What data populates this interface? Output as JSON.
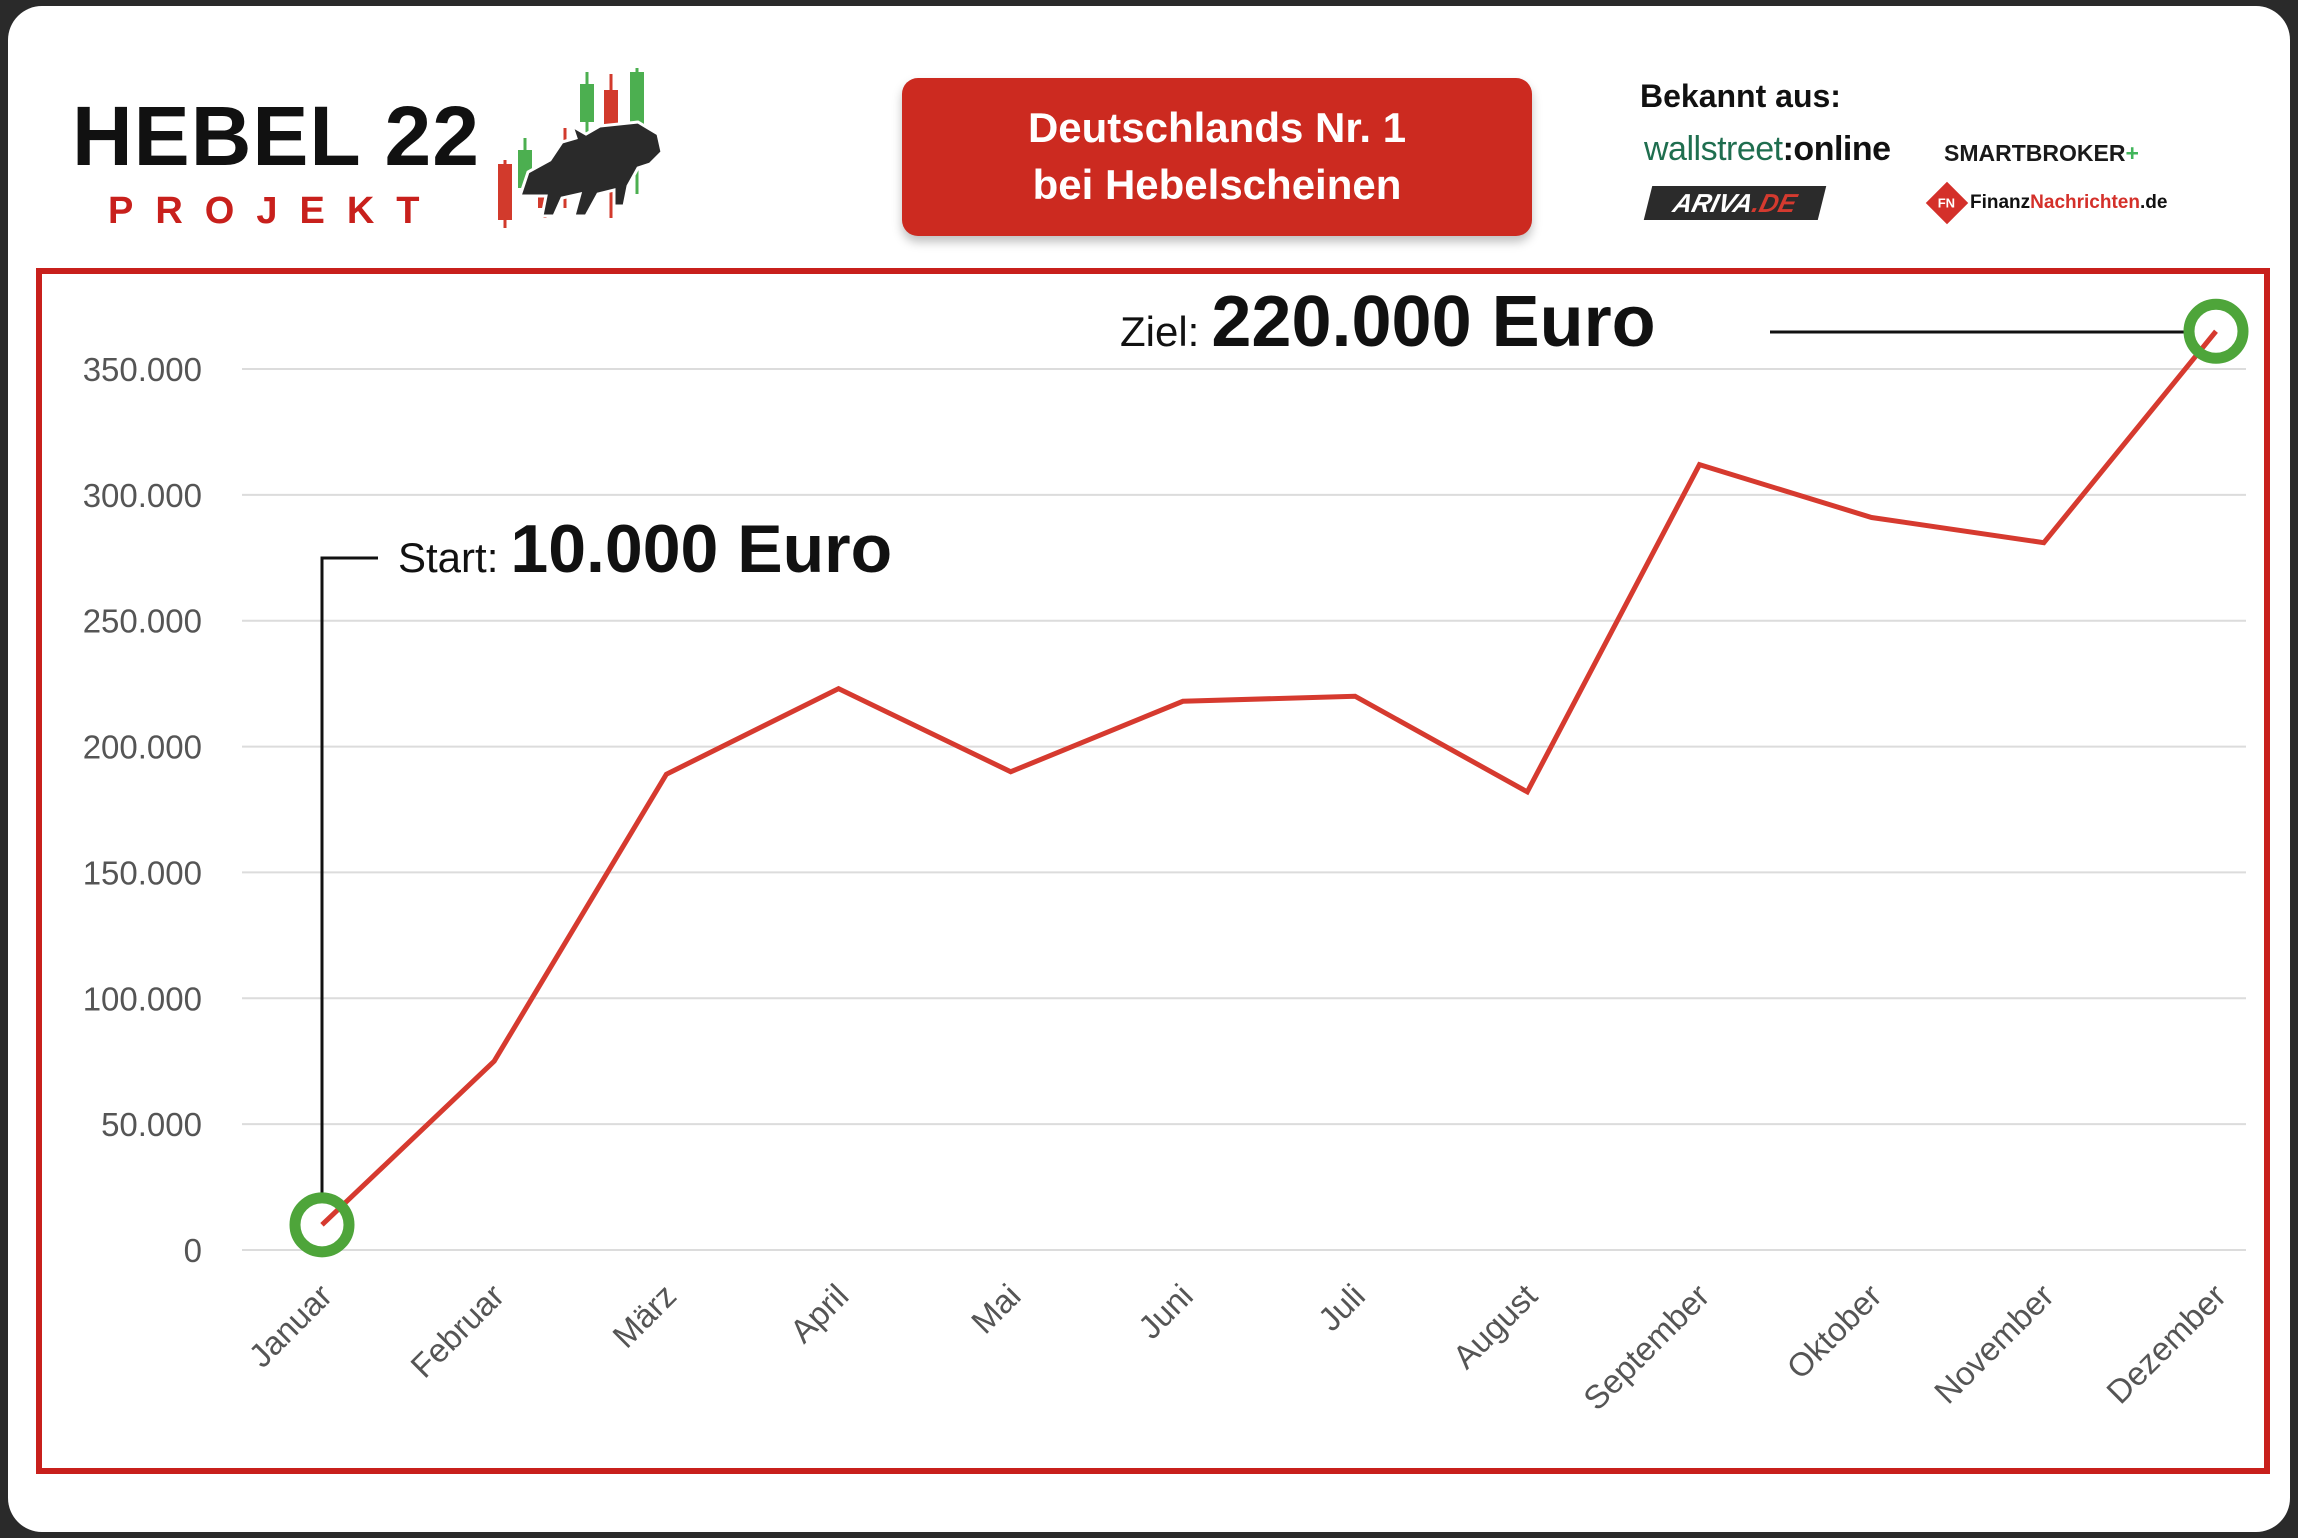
{
  "header": {
    "brand_title": "HEBEL 22",
    "brand_sub": "PROJEKT",
    "banner_line1": "Deutschlands Nr. 1",
    "banner_line2": "bei Hebelscheinen",
    "known_from": "Bekannt aus:",
    "press": {
      "wallstreet_a": "wallstreet",
      "wallstreet_b": ":online",
      "smartbroker": "SMARTBROKER",
      "smartbroker_plus": "+",
      "ariva_a": "ARIVA",
      "ariva_b": ".DE",
      "finanz_icon": "FN",
      "finanz_a": "Finanz",
      "finanz_b": "Nachrichten",
      "finanz_c": ".de"
    }
  },
  "colors": {
    "line": "#d63a2f",
    "marker": "#4ea53a",
    "brand_red": "#c8201c",
    "candle_green": "#4caf50",
    "candle_red": "#d23a2c"
  },
  "annotations": {
    "start_label": "Start:",
    "start_value": "10.000 Euro",
    "goal_label": "Ziel:",
    "goal_value": "220.000 Euro"
  },
  "chart_data": {
    "type": "line",
    "categories": [
      "Januar",
      "Februar",
      "März",
      "April",
      "Mai",
      "Juni",
      "Juli",
      "August",
      "September",
      "Oktober",
      "November",
      "Dezember"
    ],
    "series": [
      {
        "values": [
          10000,
          75000,
          189000,
          223000,
          190000,
          218000,
          220000,
          182000,
          312000,
          291000,
          281000,
          365000
        ]
      }
    ],
    "yticks": [
      "0",
      "50.000",
      "100.000",
      "150.000",
      "200.000",
      "250.000",
      "300.000",
      "350.000"
    ],
    "ylim": [
      0,
      350000
    ],
    "grid": true,
    "title": "",
    "xlabel": "",
    "ylabel": ""
  }
}
